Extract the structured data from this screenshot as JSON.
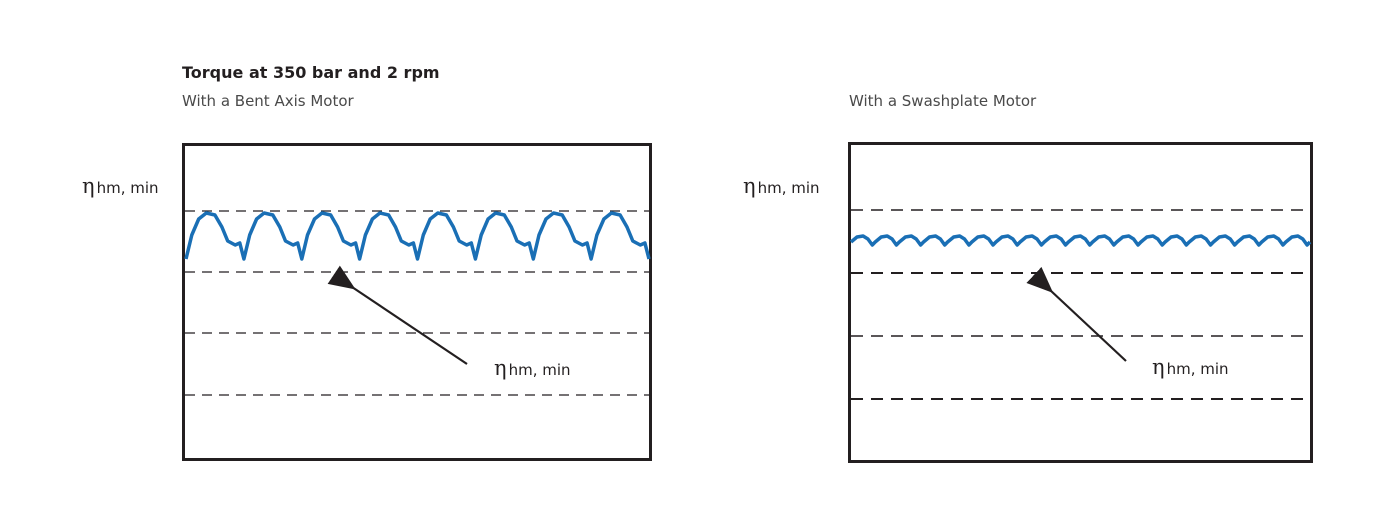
{
  "title": "Torque at 350 bar and 2 rpm",
  "panels": [
    {
      "subtitle": "With a Bent Axis Motor",
      "axis_label": "hm, min",
      "arrow_label": "hm, min",
      "symbol": "η"
    },
    {
      "subtitle": "With a Swashplate Motor",
      "axis_label": "hm, min",
      "arrow_label": "hm, min",
      "symbol": "η"
    }
  ],
  "colors": {
    "curve": "#1a6fb5",
    "frame": "#231f20",
    "dashes": "#231f20"
  }
}
